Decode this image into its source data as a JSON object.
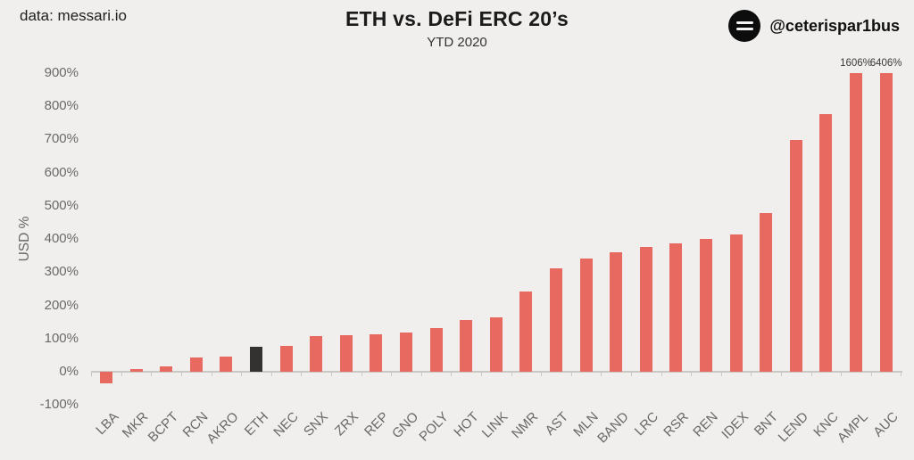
{
  "header": {
    "source": "data: messari.io",
    "title": "ETH vs. DeFi ERC 20’s",
    "subtitle": "YTD 2020",
    "handle": "@ceterispar1bus",
    "logo_icon": "equals-lines-avatar"
  },
  "chart_data": {
    "type": "bar",
    "title": "ETH vs. DeFi ERC 20’s",
    "subtitle": "YTD 2020",
    "xlabel": "",
    "ylabel": "USD %",
    "ylim": [
      -100,
      900
    ],
    "ytick_step": 100,
    "ytick_suffix": "%",
    "grid": false,
    "legend": "none",
    "categories": [
      "LBA",
      "MKR",
      "BCPT",
      "RCN",
      "AKRO",
      "ETH",
      "NEC",
      "SNX",
      "ZRX",
      "REP",
      "GNO",
      "POLY",
      "HOT",
      "LINK",
      "NMR",
      "AST",
      "MLN",
      "BAND",
      "LRC",
      "RSR",
      "REN",
      "IDEX",
      "BNT",
      "LEND",
      "KNC",
      "AMPL",
      "AUC"
    ],
    "values": [
      -35,
      9,
      15,
      44,
      47,
      75,
      77,
      108,
      110,
      112,
      119,
      131,
      156,
      163,
      241,
      312,
      342,
      361,
      375,
      387,
      401,
      414,
      477,
      699,
      776,
      1606,
      6406
    ],
    "display_cap": 900,
    "bar_labels": {
      "AMPL": "1606%",
      "AUC": "6406%"
    },
    "highlight_category": "ETH",
    "colors": {
      "bar": "#e8695f",
      "highlight_bar": "#343231",
      "axis": "#cac8c5",
      "tick_text": "#6a6966",
      "title_text": "#1b1b1b",
      "background": "#f0efed"
    }
  }
}
